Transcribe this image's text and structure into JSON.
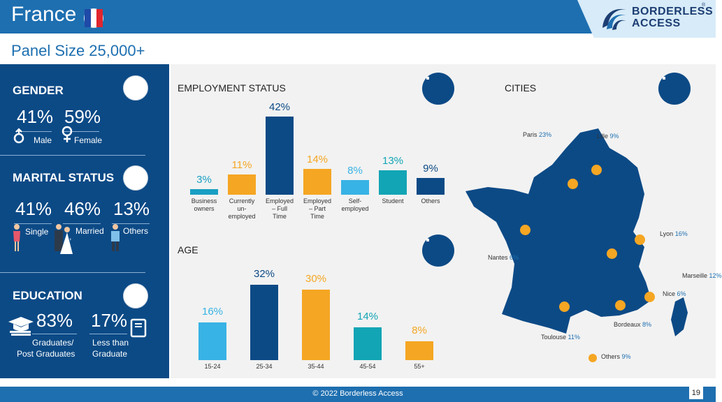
{
  "header": {
    "title": "France",
    "logo_line1": "BORDERLESS",
    "logo_line2": "ACCESS",
    "logo_reg": "®",
    "colors": {
      "bar": "#1e6fb0",
      "logo_bg": "#d7ebf8"
    }
  },
  "subtitle": "Panel Size 25,000+",
  "gender": {
    "title": "GENDER",
    "male_pct": "41%",
    "female_pct": "59%",
    "male_label": "Male",
    "female_label": "Female",
    "male_icon": "male-symbol-icon",
    "female_icon": "female-symbol-icon"
  },
  "marital": {
    "title": "MARITAL STATUS",
    "single_pct": "41%",
    "married_pct": "46%",
    "others_pct": "13%",
    "single_label": "Single",
    "married_label": "Married",
    "married_extra": ",",
    "others_label": "Others"
  },
  "education": {
    "title": "EDUCATION",
    "grad_pct": "83%",
    "less_pct": "17%",
    "grad_label_1": "Graduates/",
    "grad_label_2": "Post Graduates",
    "less_label_1": "Less than",
    "less_label_2": "Graduate"
  },
  "employment": {
    "title": "EMPLOYMENT STATUS",
    "chart_data": {
      "type": "bar",
      "categories": [
        "Business owners",
        "Currently un-employed",
        "Employed – Full Time",
        "Employed – Part Time",
        "Self-employed",
        "Student",
        "Others"
      ],
      "labels": [
        [
          "Business",
          "owners"
        ],
        [
          "Currently",
          "un-",
          "employed"
        ],
        [
          "Employed",
          "– Full",
          "Time"
        ],
        [
          "Employed",
          "– Part",
          "Time"
        ],
        [
          "Self-",
          "employed"
        ],
        [
          "Student"
        ],
        [
          "Others"
        ]
      ],
      "values": [
        3,
        11,
        42,
        14,
        8,
        13,
        9
      ],
      "value_labels": [
        "3%",
        "11%",
        "42%",
        "14%",
        "8%",
        "13%",
        "9%"
      ],
      "colors": [
        "#1a9fc4",
        "#f5a623",
        "#0c4a86",
        "#f5a623",
        "#38b3e5",
        "#12a5b5",
        "#0c4a86"
      ],
      "ylim": [
        0,
        42
      ]
    }
  },
  "age": {
    "title": "AGE",
    "chart_data": {
      "type": "bar",
      "categories": [
        "15-24",
        "25-34",
        "35-44",
        "45-54",
        "55+"
      ],
      "values": [
        16,
        32,
        30,
        14,
        8
      ],
      "value_labels": [
        "16%",
        "32%",
        "30%",
        "14%",
        "8%"
      ],
      "colors": [
        "#38b3e5",
        "#0c4a86",
        "#f5a623",
        "#12a5b5",
        "#f5a623"
      ],
      "value_colors": [
        "#38b3e5",
        "#0c4a86",
        "#f5a623",
        "#12a5b5",
        "#f5a623"
      ],
      "ylim": [
        0,
        32
      ]
    }
  },
  "cities": {
    "title": "CITIES",
    "items": [
      {
        "name": "Paris",
        "pct": "23%"
      },
      {
        "name": "Lille",
        "pct": "9%"
      },
      {
        "name": "Lyon",
        "pct": "16%"
      },
      {
        "name": "Nantes",
        "pct": "6%"
      },
      {
        "name": "Marseille",
        "pct": "12%"
      },
      {
        "name": "Nice",
        "pct": "6%"
      },
      {
        "name": "Bordeaux",
        "pct": "8%"
      },
      {
        "name": "Toulouse",
        "pct": "11%"
      },
      {
        "name": "Others",
        "pct": "9%"
      }
    ],
    "map_color": "#0c4a86",
    "dot_color": "#f5a623"
  },
  "footer": {
    "copyright": "© 2022 Borderless Access",
    "page": "19"
  }
}
